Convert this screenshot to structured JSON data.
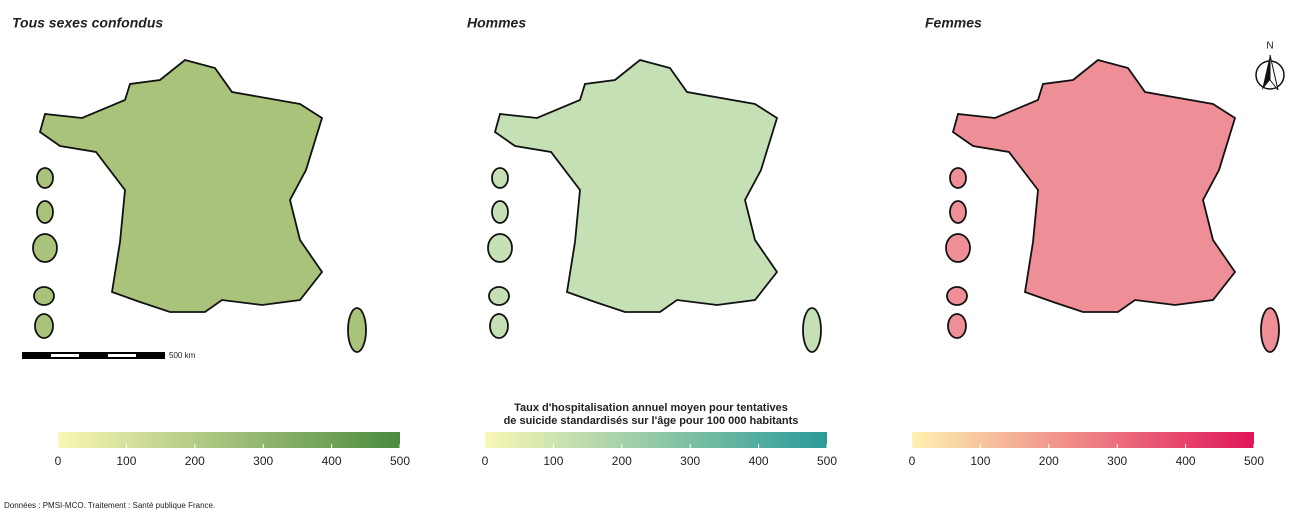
{
  "maps": [
    {
      "title": "Tous sexes confondus",
      "legend": {
        "colors": [
          "#f9f7b5",
          "#4b8b3e"
        ],
        "range": [
          0,
          500
        ],
        "ticks": [
          0,
          100,
          200,
          300,
          400,
          500
        ]
      }
    },
    {
      "title": "Hommes",
      "legend": {
        "colors": [
          "#f9f7b5",
          "#2a9a98"
        ],
        "range": [
          0,
          500
        ],
        "ticks": [
          0,
          100,
          200,
          300,
          400,
          500
        ]
      }
    },
    {
      "title": "Femmes",
      "legend": {
        "colors": [
          "#fdf2b0",
          "#e0165a"
        ],
        "range": [
          0,
          500
        ],
        "ticks": [
          0,
          100,
          200,
          300,
          400,
          500
        ]
      }
    }
  ],
  "legend_title": [
    "Taux d'hospitalisation annuel moyen pour tentatives",
    "de suicide standardisés sur l'âge pour 100 000 habitants"
  ],
  "scale_bar": "500 km",
  "north_arrow": "N",
  "source": "Données : PMSI-MCO. Traitement : Santé publique France."
}
